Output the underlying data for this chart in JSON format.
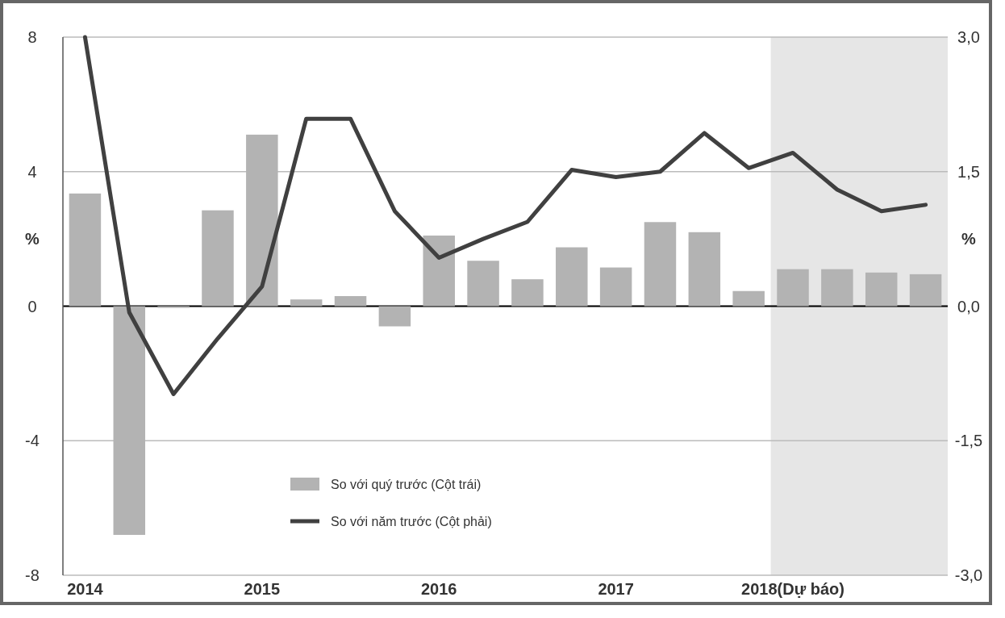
{
  "chart_data": {
    "type": "bar",
    "categories": [
      "2014",
      null,
      null,
      null,
      "2015",
      null,
      null,
      null,
      "2016",
      null,
      null,
      null,
      "2017",
      null,
      null,
      null,
      "2018(Dự báo)",
      null,
      null,
      null
    ],
    "series": [
      {
        "name": "So với quý trước (Cột trái)",
        "color": "#b3b3b3",
        "values": [
          3.35,
          -6.8,
          -0.05,
          2.85,
          5.1,
          0.2,
          0.3,
          -0.6,
          2.1,
          1.35,
          0.8,
          1.75,
          1.15,
          2.5,
          2.2,
          0.45,
          1.1,
          1.1,
          1.0,
          0.95
        ]
      },
      {
        "name": "So với năm trước (Cột phải)",
        "type": "line",
        "axis": "y2",
        "color": "#404040",
        "values": [
          3.0,
          -0.07,
          -0.98,
          -0.36,
          0.22,
          2.09,
          2.09,
          1.06,
          0.54,
          0.75,
          0.94,
          1.52,
          1.44,
          1.5,
          1.93,
          1.54,
          1.71,
          1.3,
          1.06,
          1.13
        ]
      }
    ],
    "ylabel": "%",
    "y2label": "%",
    "ylim": [
      -8,
      8
    ],
    "yticks": [
      -8,
      -4,
      0,
      4,
      8
    ],
    "y2lim": [
      -3,
      3
    ],
    "y2ticks": [
      {
        "value": -3,
        "label": "-3,0"
      },
      {
        "value": -1.5,
        "label": "-1,5"
      },
      {
        "value": 0,
        "label": "0,0"
      },
      {
        "value": 1.5,
        "label": "1,5"
      },
      {
        "value": 3,
        "label": "3,0"
      }
    ],
    "grid": "y",
    "legend": "bottom",
    "marker": "none",
    "line_style": "solid"
  }
}
